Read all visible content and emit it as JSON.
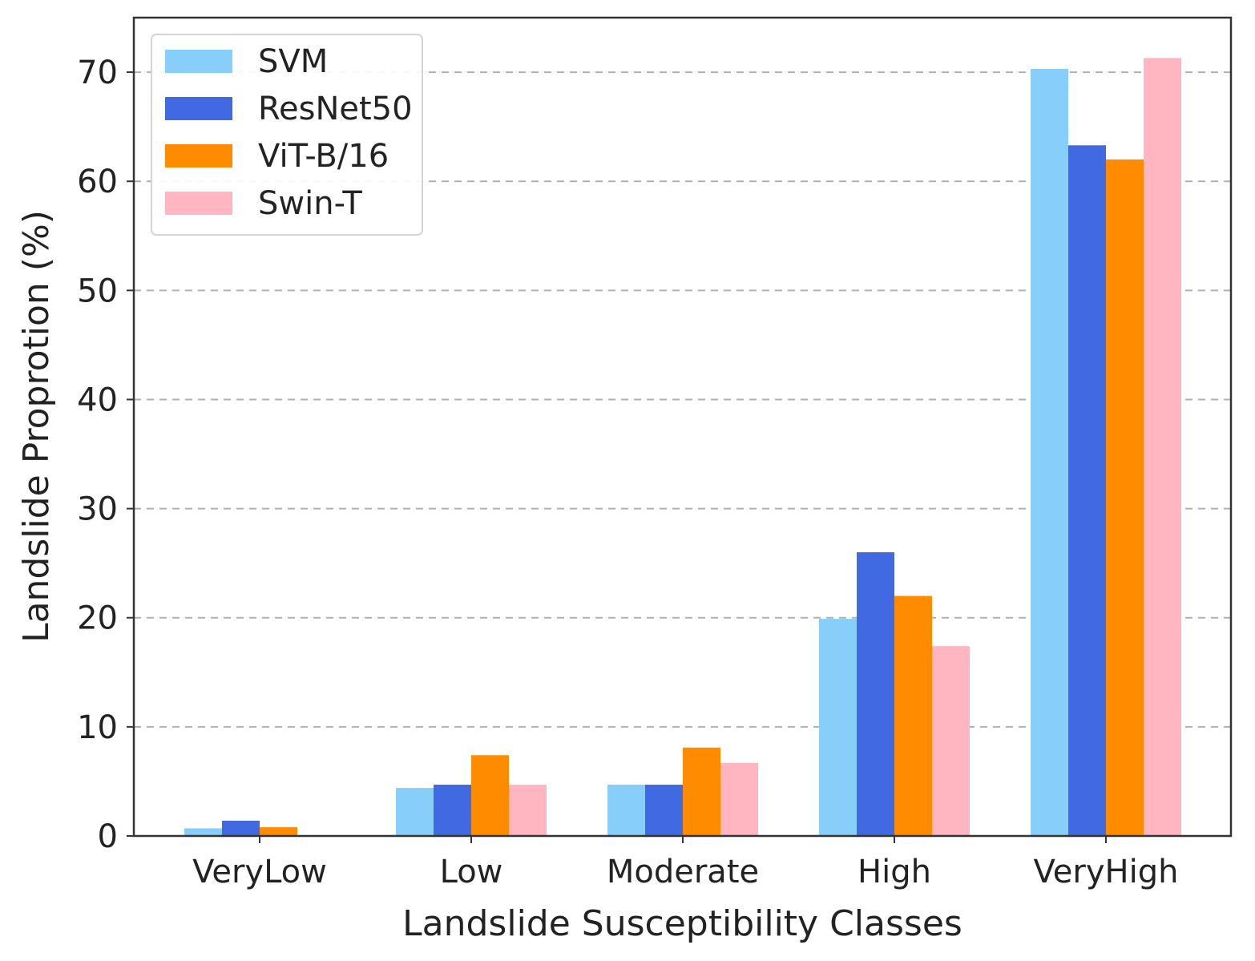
{
  "chart_data": {
    "type": "bar",
    "title": "",
    "xlabel": "Landslide Susceptibility Classes",
    "ylabel": "Landslide Proprotion (%)",
    "categories": [
      "VeryLow",
      "Low",
      "Moderate",
      "High",
      "VeryHigh"
    ],
    "series": [
      {
        "name": "SVM",
        "color": "#87CEFA",
        "values": [
          0.7,
          4.4,
          4.7,
          19.9,
          70.3
        ]
      },
      {
        "name": "ResNet50",
        "color": "#4169E1",
        "values": [
          1.4,
          4.7,
          4.7,
          26.0,
          63.3
        ]
      },
      {
        "name": "ViT-B/16",
        "color": "#FF8C00",
        "values": [
          0.8,
          7.4,
          8.1,
          22.0,
          62.0
        ]
      },
      {
        "name": "Swin-T",
        "color": "#FFB6C1",
        "values": [
          0.0,
          4.7,
          6.7,
          17.4,
          71.3
        ]
      }
    ],
    "ylim": [
      0,
      75
    ],
    "yticks": [
      0,
      10,
      20,
      30,
      40,
      50,
      60,
      70
    ],
    "grid": "y-dashed",
    "legend_position": "top-left"
  }
}
